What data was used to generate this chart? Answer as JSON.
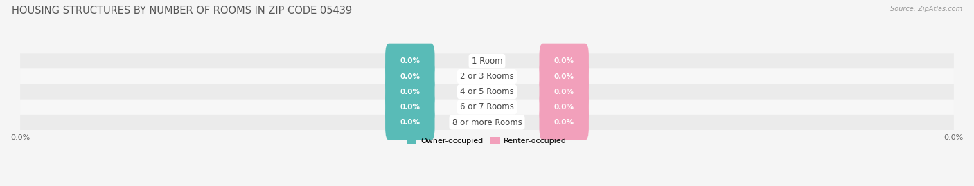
{
  "title": "HOUSING STRUCTURES BY NUMBER OF ROOMS IN ZIP CODE 05439",
  "source": "Source: ZipAtlas.com",
  "categories": [
    "1 Room",
    "2 or 3 Rooms",
    "4 or 5 Rooms",
    "6 or 7 Rooms",
    "8 or more Rooms"
  ],
  "owner_values": [
    0.0,
    0.0,
    0.0,
    0.0,
    0.0
  ],
  "renter_values": [
    0.0,
    0.0,
    0.0,
    0.0,
    0.0
  ],
  "owner_color": "#59bbb7",
  "renter_color": "#f2a0bb",
  "row_color_even": "#ebebeb",
  "row_color_odd": "#f7f7f7",
  "bg_color": "#f5f5f5",
  "title_fontsize": 10.5,
  "label_fontsize": 7.5,
  "category_fontsize": 8.5,
  "legend_owner": "Owner-occupied",
  "legend_renter": "Renter-occupied",
  "figsize": [
    14.06,
    2.69
  ],
  "dpi": 100
}
